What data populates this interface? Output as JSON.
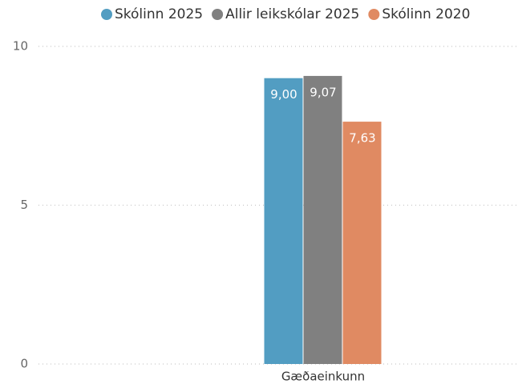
{
  "chart_data": {
    "type": "bar",
    "categories": [
      "Gæðaeinkunn"
    ],
    "series": [
      {
        "name": "Skólinn 2025",
        "color": "#529dc2",
        "values": [
          9.0
        ],
        "value_labels": [
          "9,00"
        ]
      },
      {
        "name": "Allir leikskólar 2025",
        "color": "#808080",
        "values": [
          9.07
        ],
        "value_labels": [
          "9,07"
        ]
      },
      {
        "name": "Skólinn 2020",
        "color": "#e08a62",
        "values": [
          7.63
        ],
        "value_labels": [
          "7,63"
        ]
      }
    ],
    "ylim": [
      0,
      10
    ],
    "yticks": [
      0,
      5,
      10
    ],
    "grid": true,
    "legend": "top-right"
  }
}
